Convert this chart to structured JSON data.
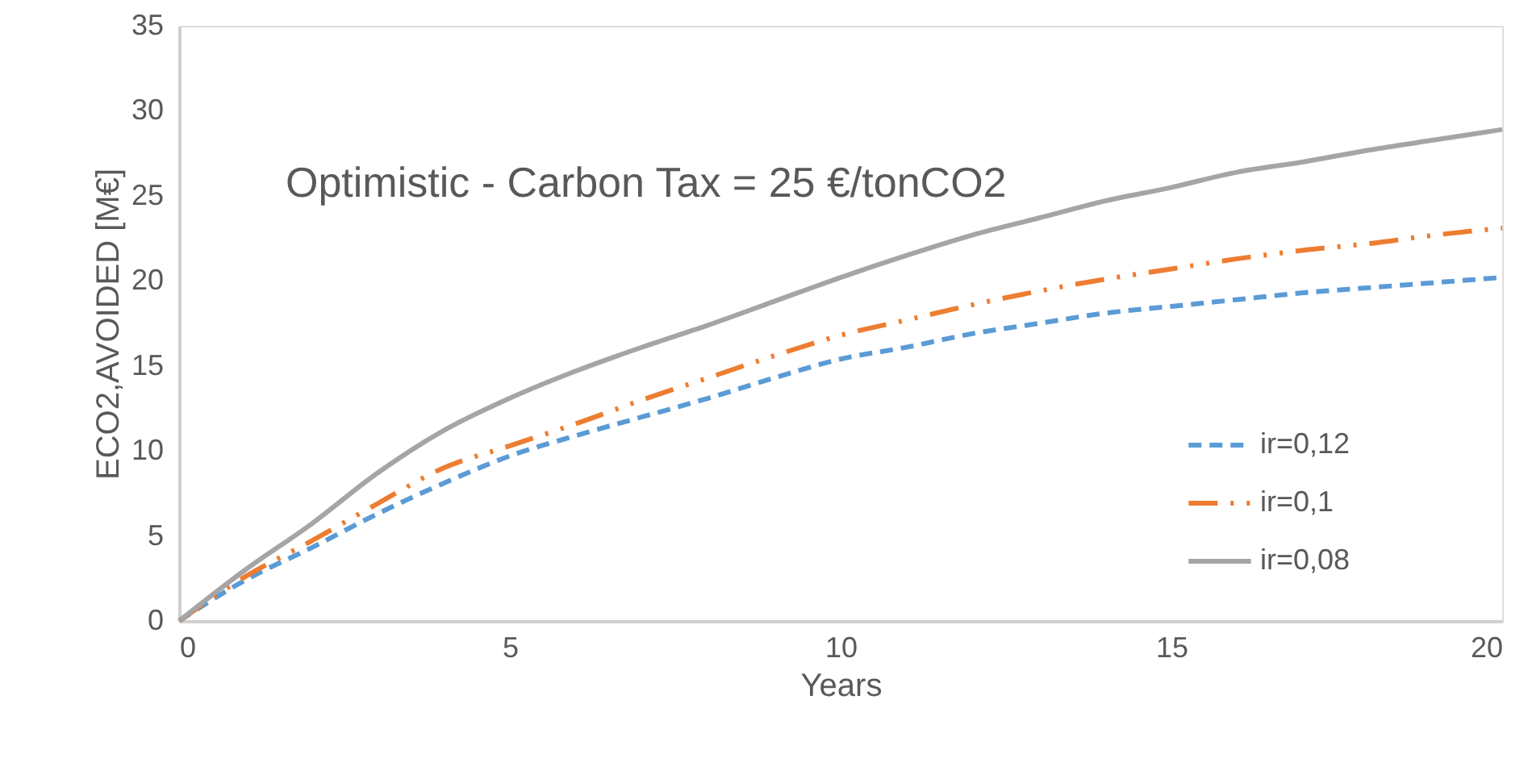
{
  "chart_data": {
    "type": "line",
    "title": "Optimistic - Carbon Tax = 25 €/tonCO2",
    "xlabel": "Years",
    "ylabel": "ECO2,AVOIDED [M€]",
    "x": [
      0,
      1,
      2,
      3,
      4,
      5,
      6,
      7,
      8,
      9,
      10,
      11,
      12,
      13,
      14,
      15,
      16,
      17,
      18,
      19,
      20
    ],
    "series": [
      {
        "name": "ir=0,12",
        "color": "#5b9bd5",
        "line_style": "dashed",
        "values": [
          0,
          2.4,
          4.3,
          6.3,
          8.1,
          9.7,
          10.9,
          12.0,
          13.1,
          14.3,
          15.4,
          16.1,
          16.9,
          17.5,
          18.1,
          18.5,
          18.9,
          19.3,
          19.6,
          19.9,
          20.2
        ]
      },
      {
        "name": "ir=0,1",
        "color": "#ed7d31",
        "line_style": "dashdotdot",
        "values": [
          0,
          2.6,
          4.7,
          6.9,
          9.0,
          10.3,
          11.6,
          13.0,
          14.3,
          15.6,
          16.8,
          17.7,
          18.6,
          19.4,
          20.1,
          20.7,
          21.3,
          21.8,
          22.2,
          22.7,
          23.1
        ]
      },
      {
        "name": "ir=0,08",
        "color": "#a5a5a5",
        "line_style": "solid",
        "values": [
          0,
          3.0,
          5.7,
          8.7,
          11.2,
          13.1,
          14.7,
          16.1,
          17.4,
          18.8,
          20.2,
          21.5,
          22.7,
          23.7,
          24.7,
          25.5,
          26.4,
          27.0,
          27.7,
          28.3,
          28.9
        ]
      }
    ],
    "xlim": [
      0,
      20
    ],
    "xticks": [
      0,
      5,
      10,
      15,
      20
    ],
    "ylim": [
      0,
      35
    ],
    "yticks": [
      0,
      5,
      10,
      15,
      20,
      25,
      30,
      35
    ],
    "grid": false,
    "legend": "bottom right",
    "marker": "none"
  }
}
